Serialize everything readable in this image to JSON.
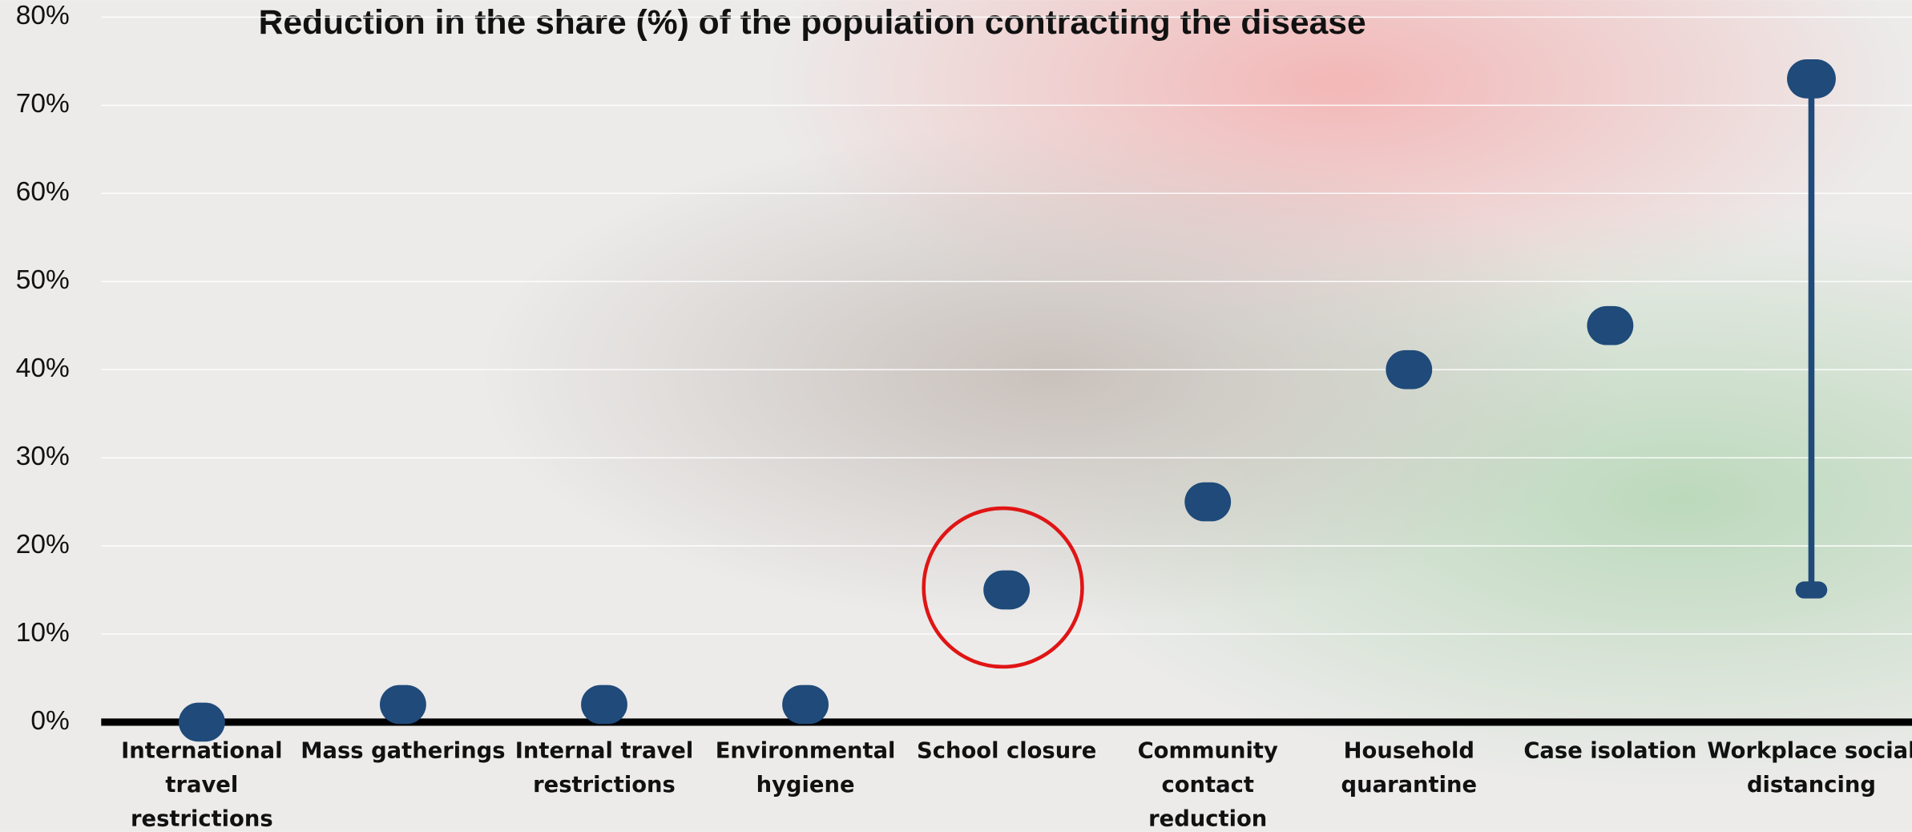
{
  "chart_data": {
    "type": "range",
    "title": "Reduction in the share (%) of the population contracting the disease",
    "categories": [
      "International travel restrictions",
      "Mass gatherings",
      "Internal travel restrictions",
      "Environmental hygiene",
      "School closure",
      "Community contact reduction",
      "Household quarantine",
      "Case isolation",
      "Workplace social distancing"
    ],
    "low": [
      0,
      2,
      2,
      2,
      15,
      25,
      40,
      45,
      15
    ],
    "high": [
      0,
      2,
      2,
      2,
      15,
      25,
      40,
      45,
      73
    ],
    "color": "#1f4a7a",
    "ylim": [
      0,
      80
    ],
    "yticks": [
      {
        "value": 0,
        "label": "0%"
      },
      {
        "value": 10,
        "label": "10%"
      },
      {
        "value": 20,
        "label": "20%"
      },
      {
        "value": 30,
        "label": "30%"
      },
      {
        "value": 40,
        "label": "40%"
      },
      {
        "value": 50,
        "label": "50%"
      },
      {
        "value": 60,
        "label": "60%"
      },
      {
        "value": 70,
        "label": "70%"
      },
      {
        "value": 80,
        "label": "80%"
      }
    ],
    "grid": true
  }
}
